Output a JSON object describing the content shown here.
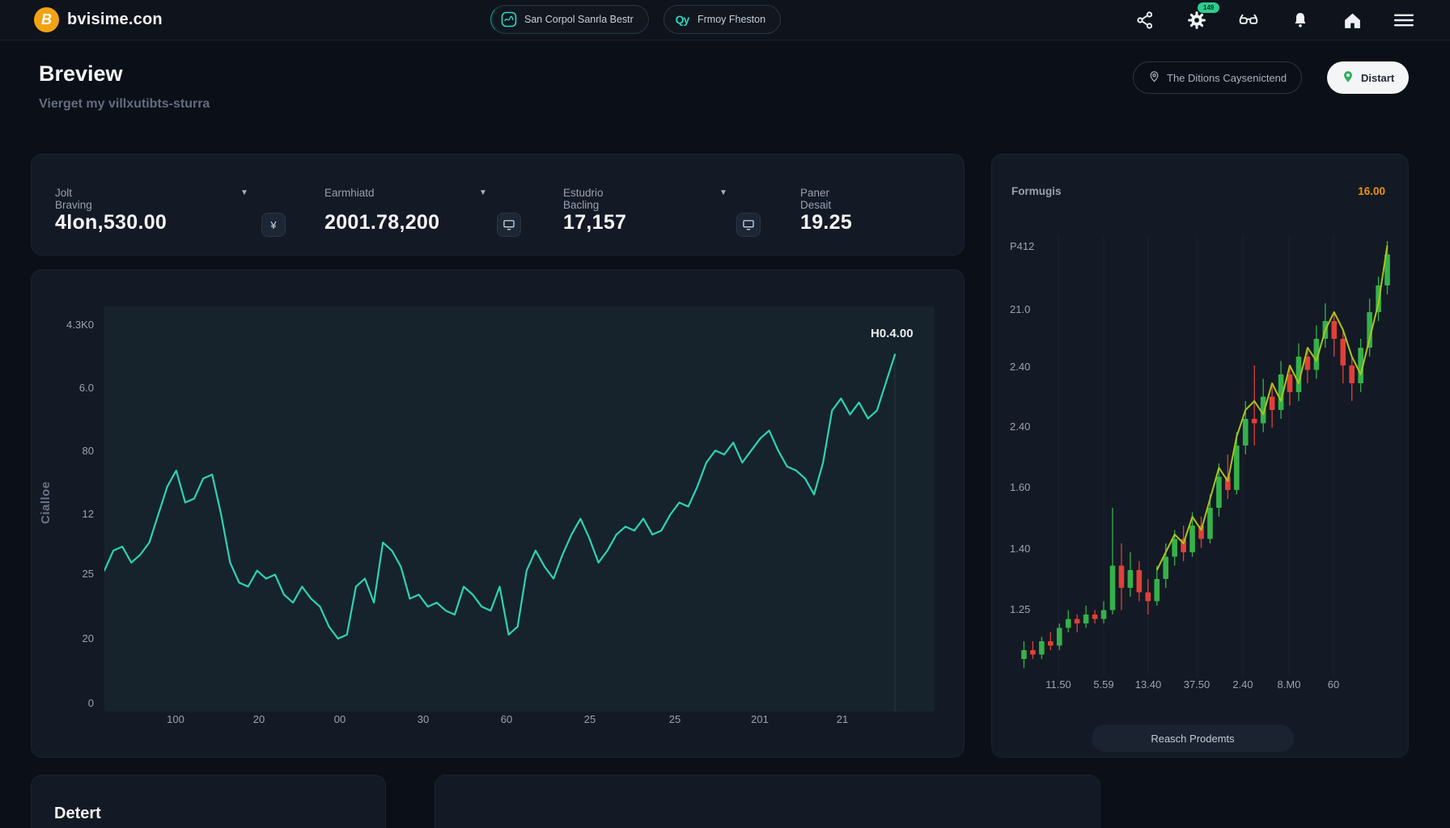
{
  "nav": {
    "brand": "bvisime.con",
    "pills": [
      {
        "icon": "scribble-badge-icon",
        "label": "San Corpol Sanrla Bestr"
      },
      {
        "icon": "qy-icon",
        "label": "Frmoy Fheston"
      }
    ],
    "gear_badge": "149",
    "icons": [
      "share-icon",
      "gear-icon",
      "glasses-icon",
      "bell-icon",
      "home-icon",
      "menu-icon"
    ]
  },
  "header": {
    "title": "Breview",
    "subtitle": "Vierget my villxutibts-sturra",
    "actions": [
      {
        "icon": "pin-outline-icon",
        "label": "The Ditions Caysenictend"
      },
      {
        "icon": "pin-green-icon",
        "label": "Distart"
      }
    ]
  },
  "stats": {
    "items": [
      {
        "label": "Jolt Braving",
        "value": "4lon,530.00",
        "badge_glyph": "¥",
        "dropdown": true
      },
      {
        "label": "Earmhiatd",
        "value": "2001.78,200",
        "badge_glyph": "",
        "dropdown": true
      },
      {
        "label": "Estudrio Bacling",
        "value": "17,157",
        "badge_glyph": "",
        "dropdown": true
      },
      {
        "label": "Paner Desait",
        "value": "19.25",
        "badge_glyph": "",
        "dropdown": false
      }
    ]
  },
  "right_panel": {
    "button_label": "Reasch Prodemts"
  },
  "bottom": {
    "left_card_title": "Detert"
  },
  "colors": {
    "accent_teal": "#2ed3b4",
    "candle_green": "#35b14a",
    "candle_red": "#e04038",
    "overlay_line": "#a9c41f",
    "orange": "#e8930f",
    "badge_green": "#2ecc90"
  },
  "chart_data": [
    {
      "type": "line",
      "title": "",
      "ylabel": "Cialloe",
      "y_ticks": [
        "4.3K0",
        "6.0",
        "80",
        "12",
        "25",
        "20",
        "0"
      ],
      "x_ticks": [
        "100",
        "20",
        "00",
        "30",
        "60",
        "25",
        "25",
        "201",
        "21"
      ],
      "annotation": "H0.4.00",
      "line_color": "#2ed3b4",
      "plot_bg": "#16232c",
      "ylim": [
        0,
        100
      ],
      "grid": false,
      "values": [
        34,
        39,
        40,
        36,
        38,
        41,
        48,
        55,
        59,
        51,
        52,
        57,
        58,
        48,
        36,
        31,
        30,
        34,
        32,
        33,
        28,
        26,
        30,
        27,
        25,
        20,
        17,
        18,
        30,
        32,
        26,
        41,
        39,
        35,
        27,
        28,
        25,
        26,
        24,
        23,
        30,
        28,
        25,
        24,
        30,
        18,
        20,
        34,
        39,
        35,
        32,
        38,
        43,
        47,
        42,
        36,
        39,
        43,
        45,
        44,
        47,
        43,
        44,
        48,
        51,
        50,
        55,
        61,
        64,
        63,
        66,
        61,
        64,
        67,
        69,
        64,
        60,
        59,
        57,
        53,
        61,
        74,
        77,
        73,
        76,
        72,
        74,
        81,
        88
      ]
    },
    {
      "type": "candlestick",
      "title": "Formugis",
      "last_price": "16.00",
      "y_ticks": [
        "P412",
        "21.0",
        "2.40",
        "2.40",
        "1.60",
        "1.40",
        "1.25"
      ],
      "x_ticks": [
        "11.50",
        "5.59",
        "13.40",
        "37.50",
        "2.40",
        "8.M0",
        "60"
      ],
      "up_color": "#35b14a",
      "down_color": "#e04038",
      "overlay_color": "#a9c41f",
      "ylim": [
        0,
        100
      ],
      "grid": true,
      "candles": [
        [
          4,
          6,
          8,
          2
        ],
        [
          6,
          5,
          8,
          4
        ],
        [
          5,
          8,
          9,
          4
        ],
        [
          8,
          7,
          10,
          6
        ],
        [
          7,
          11,
          12,
          6
        ],
        [
          11,
          13,
          15,
          10
        ],
        [
          13,
          12,
          14,
          10
        ],
        [
          12,
          14,
          16,
          11
        ],
        [
          14,
          13,
          15,
          12
        ],
        [
          13,
          15,
          17,
          12
        ],
        [
          15,
          25,
          38,
          14
        ],
        [
          25,
          20,
          30,
          15
        ],
        [
          20,
          24,
          28,
          18
        ],
        [
          24,
          19,
          26,
          17
        ],
        [
          19,
          17,
          22,
          14
        ],
        [
          17,
          22,
          25,
          16
        ],
        [
          22,
          27,
          30,
          20
        ],
        [
          27,
          31,
          33,
          25
        ],
        [
          31,
          28,
          34,
          26
        ],
        [
          28,
          34,
          37,
          27
        ],
        [
          34,
          31,
          36,
          29
        ],
        [
          31,
          38,
          41,
          30
        ],
        [
          38,
          45,
          48,
          36
        ],
        [
          45,
          42,
          50,
          40
        ],
        [
          42,
          52,
          55,
          41
        ],
        [
          52,
          58,
          62,
          50
        ],
        [
          58,
          57,
          70,
          52
        ],
        [
          57,
          63,
          67,
          55
        ],
        [
          63,
          60,
          66,
          56
        ],
        [
          60,
          68,
          71,
          58
        ],
        [
          68,
          64,
          70,
          61
        ],
        [
          64,
          72,
          75,
          62
        ],
        [
          72,
          69,
          74,
          66
        ],
        [
          69,
          76,
          79,
          67
        ],
        [
          76,
          80,
          84,
          74
        ],
        [
          80,
          76,
          82,
          72
        ],
        [
          76,
          70,
          78,
          66
        ],
        [
          70,
          66,
          72,
          62
        ],
        [
          66,
          74,
          76,
          64
        ],
        [
          74,
          82,
          85,
          72
        ],
        [
          82,
          88,
          90,
          80
        ],
        [
          88,
          95,
          98,
          86
        ]
      ],
      "overlay": {
        "start_index": 15,
        "values": [
          24,
          28,
          32,
          30,
          36,
          33,
          40,
          47,
          44,
          54,
          60,
          62,
          59,
          66,
          62,
          70,
          66,
          74,
          71,
          78,
          82,
          78,
          72,
          68,
          76,
          84,
          97
        ]
      }
    }
  ]
}
